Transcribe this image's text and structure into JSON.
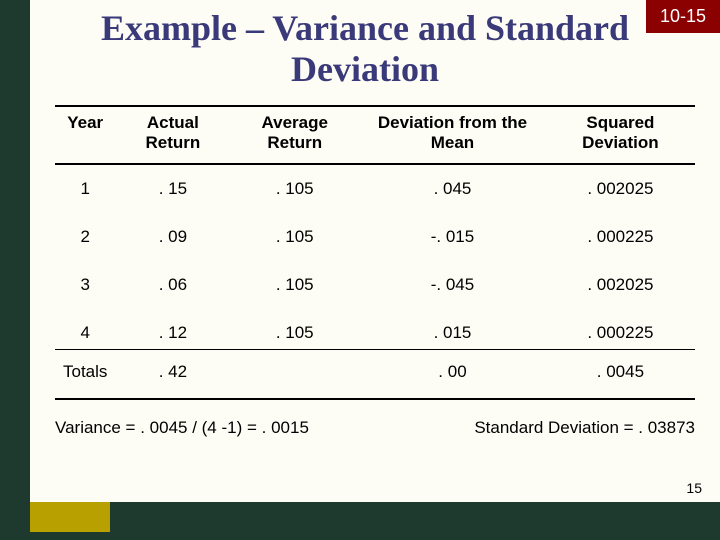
{
  "corner": "10-15",
  "title": "Example – Variance and Standard Deviation",
  "table": {
    "headers": [
      "Year",
      "Actual Return",
      "Average Return",
      "Deviation from the Mean",
      "Squared Deviation"
    ],
    "rows": [
      [
        "1",
        ". 15",
        ". 105",
        ". 045",
        ". 002025"
      ],
      [
        "2",
        ". 09",
        ". 105",
        "-. 015",
        ". 000225"
      ],
      [
        "3",
        ". 06",
        ". 105",
        "-. 045",
        ". 002025"
      ],
      [
        "4",
        ". 12",
        ". 105",
        ". 015",
        ". 000225"
      ]
    ],
    "totals": [
      "Totals",
      ". 42",
      "",
      ". 00",
      ". 0045"
    ]
  },
  "calc": {
    "variance": "Variance = . 0045 / (4 -1) = . 0015",
    "stddev": "Standard Deviation = . 03873"
  },
  "page_number": "15",
  "colors": {
    "bg_outer": "#1e3a2e",
    "bg_slide": "#fdfdf5",
    "corner_bg": "#8b0000",
    "accent": "#b8a000",
    "title_color": "#3a3a7a",
    "text": "#000000"
  },
  "fonts": {
    "title_family": "Times New Roman, serif",
    "title_size_pt": 28,
    "body_family": "Arial, sans-serif",
    "body_size_pt": 13
  }
}
